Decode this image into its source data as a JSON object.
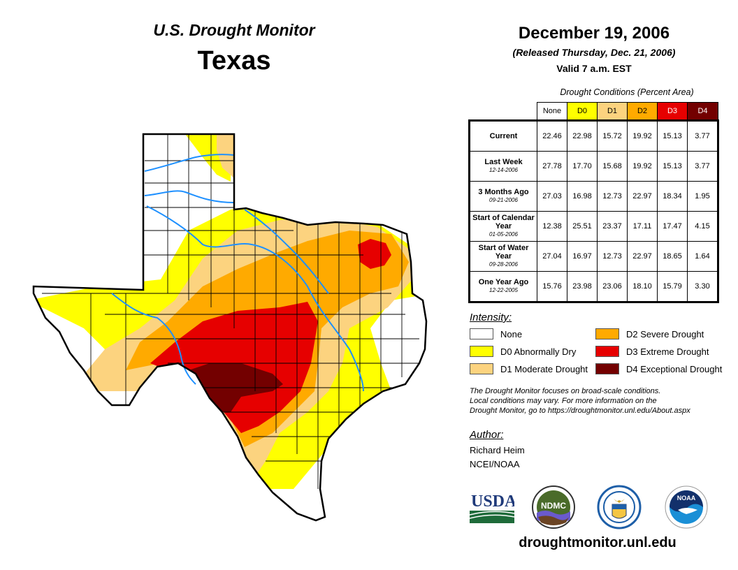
{
  "header": {
    "product_title": "U.S. Drought Monitor",
    "region": "Texas",
    "map_date": "December 19, 2006",
    "released": "(Released Thursday, Dec. 21, 2006)",
    "valid": "Valid 7 a.m. EST"
  },
  "table": {
    "caption": "Drought Conditions (Percent Area)",
    "columns": [
      {
        "label": "None",
        "color": "#ffffff",
        "text_color": "#000000"
      },
      {
        "label": "D0",
        "color": "#ffff00",
        "text_color": "#000000"
      },
      {
        "label": "D1",
        "color": "#fcd37f",
        "text_color": "#000000"
      },
      {
        "label": "D2",
        "color": "#ffaa00",
        "text_color": "#000000"
      },
      {
        "label": "D3",
        "color": "#e60000",
        "text_color": "#ffffff"
      },
      {
        "label": "D4",
        "color": "#730000",
        "text_color": "#ffffff"
      }
    ],
    "rows": [
      {
        "label": "Current",
        "date": "",
        "values": [
          "22.46",
          "22.98",
          "15.72",
          "19.92",
          "15.13",
          "3.77"
        ]
      },
      {
        "label": "Last Week",
        "date": "12-14-2006",
        "values": [
          "27.78",
          "17.70",
          "15.68",
          "19.92",
          "15.13",
          "3.77"
        ]
      },
      {
        "label": "3 Months Ago",
        "date": "09-21-2006",
        "values": [
          "27.03",
          "16.98",
          "12.73",
          "22.97",
          "18.34",
          "1.95"
        ]
      },
      {
        "label": "Start of Calendar Year",
        "date": "01-05-2006",
        "values": [
          "12.38",
          "25.51",
          "23.37",
          "17.11",
          "17.47",
          "4.15"
        ]
      },
      {
        "label": "Start of Water Year",
        "date": "09-28-2006",
        "values": [
          "27.04",
          "16.97",
          "12.73",
          "22.97",
          "18.65",
          "1.64"
        ]
      },
      {
        "label": "One Year Ago",
        "date": "12-22-2005",
        "values": [
          "15.76",
          "23.98",
          "23.06",
          "18.10",
          "15.79",
          "3.30"
        ]
      }
    ]
  },
  "legend": {
    "title": "Intensity:",
    "items": [
      {
        "label": "None",
        "color": "#ffffff"
      },
      {
        "label": "D0 Abnormally Dry",
        "color": "#ffff00"
      },
      {
        "label": "D1 Moderate Drought",
        "color": "#fcd37f"
      },
      {
        "label": "D2 Severe Drought",
        "color": "#ffaa00"
      },
      {
        "label": "D3 Extreme Drought",
        "color": "#e60000"
      },
      {
        "label": "D4 Exceptional Drought",
        "color": "#730000"
      }
    ]
  },
  "note": {
    "line1": "The Drought Monitor focuses on broad-scale conditions.",
    "line2": "Local conditions may vary. For more information on the",
    "line3": "Drought Monitor, go to https://droughtmonitor.unl.edu/About.aspx"
  },
  "author": {
    "title": "Author:",
    "name": "Richard Heim",
    "org": "NCEI/NOAA"
  },
  "logos": [
    {
      "name": "usda-logo",
      "text": "USDA"
    },
    {
      "name": "ndmc-logo",
      "text": "NDMC"
    },
    {
      "name": "doc-seal-logo",
      "text": ""
    },
    {
      "name": "noaa-logo",
      "text": "NOAA"
    }
  ],
  "footer": {
    "url": "droughtmonitor.unl.edu"
  },
  "map": {
    "state": "Texas",
    "river_color": "#1e90ff",
    "border_color": "#000000"
  }
}
